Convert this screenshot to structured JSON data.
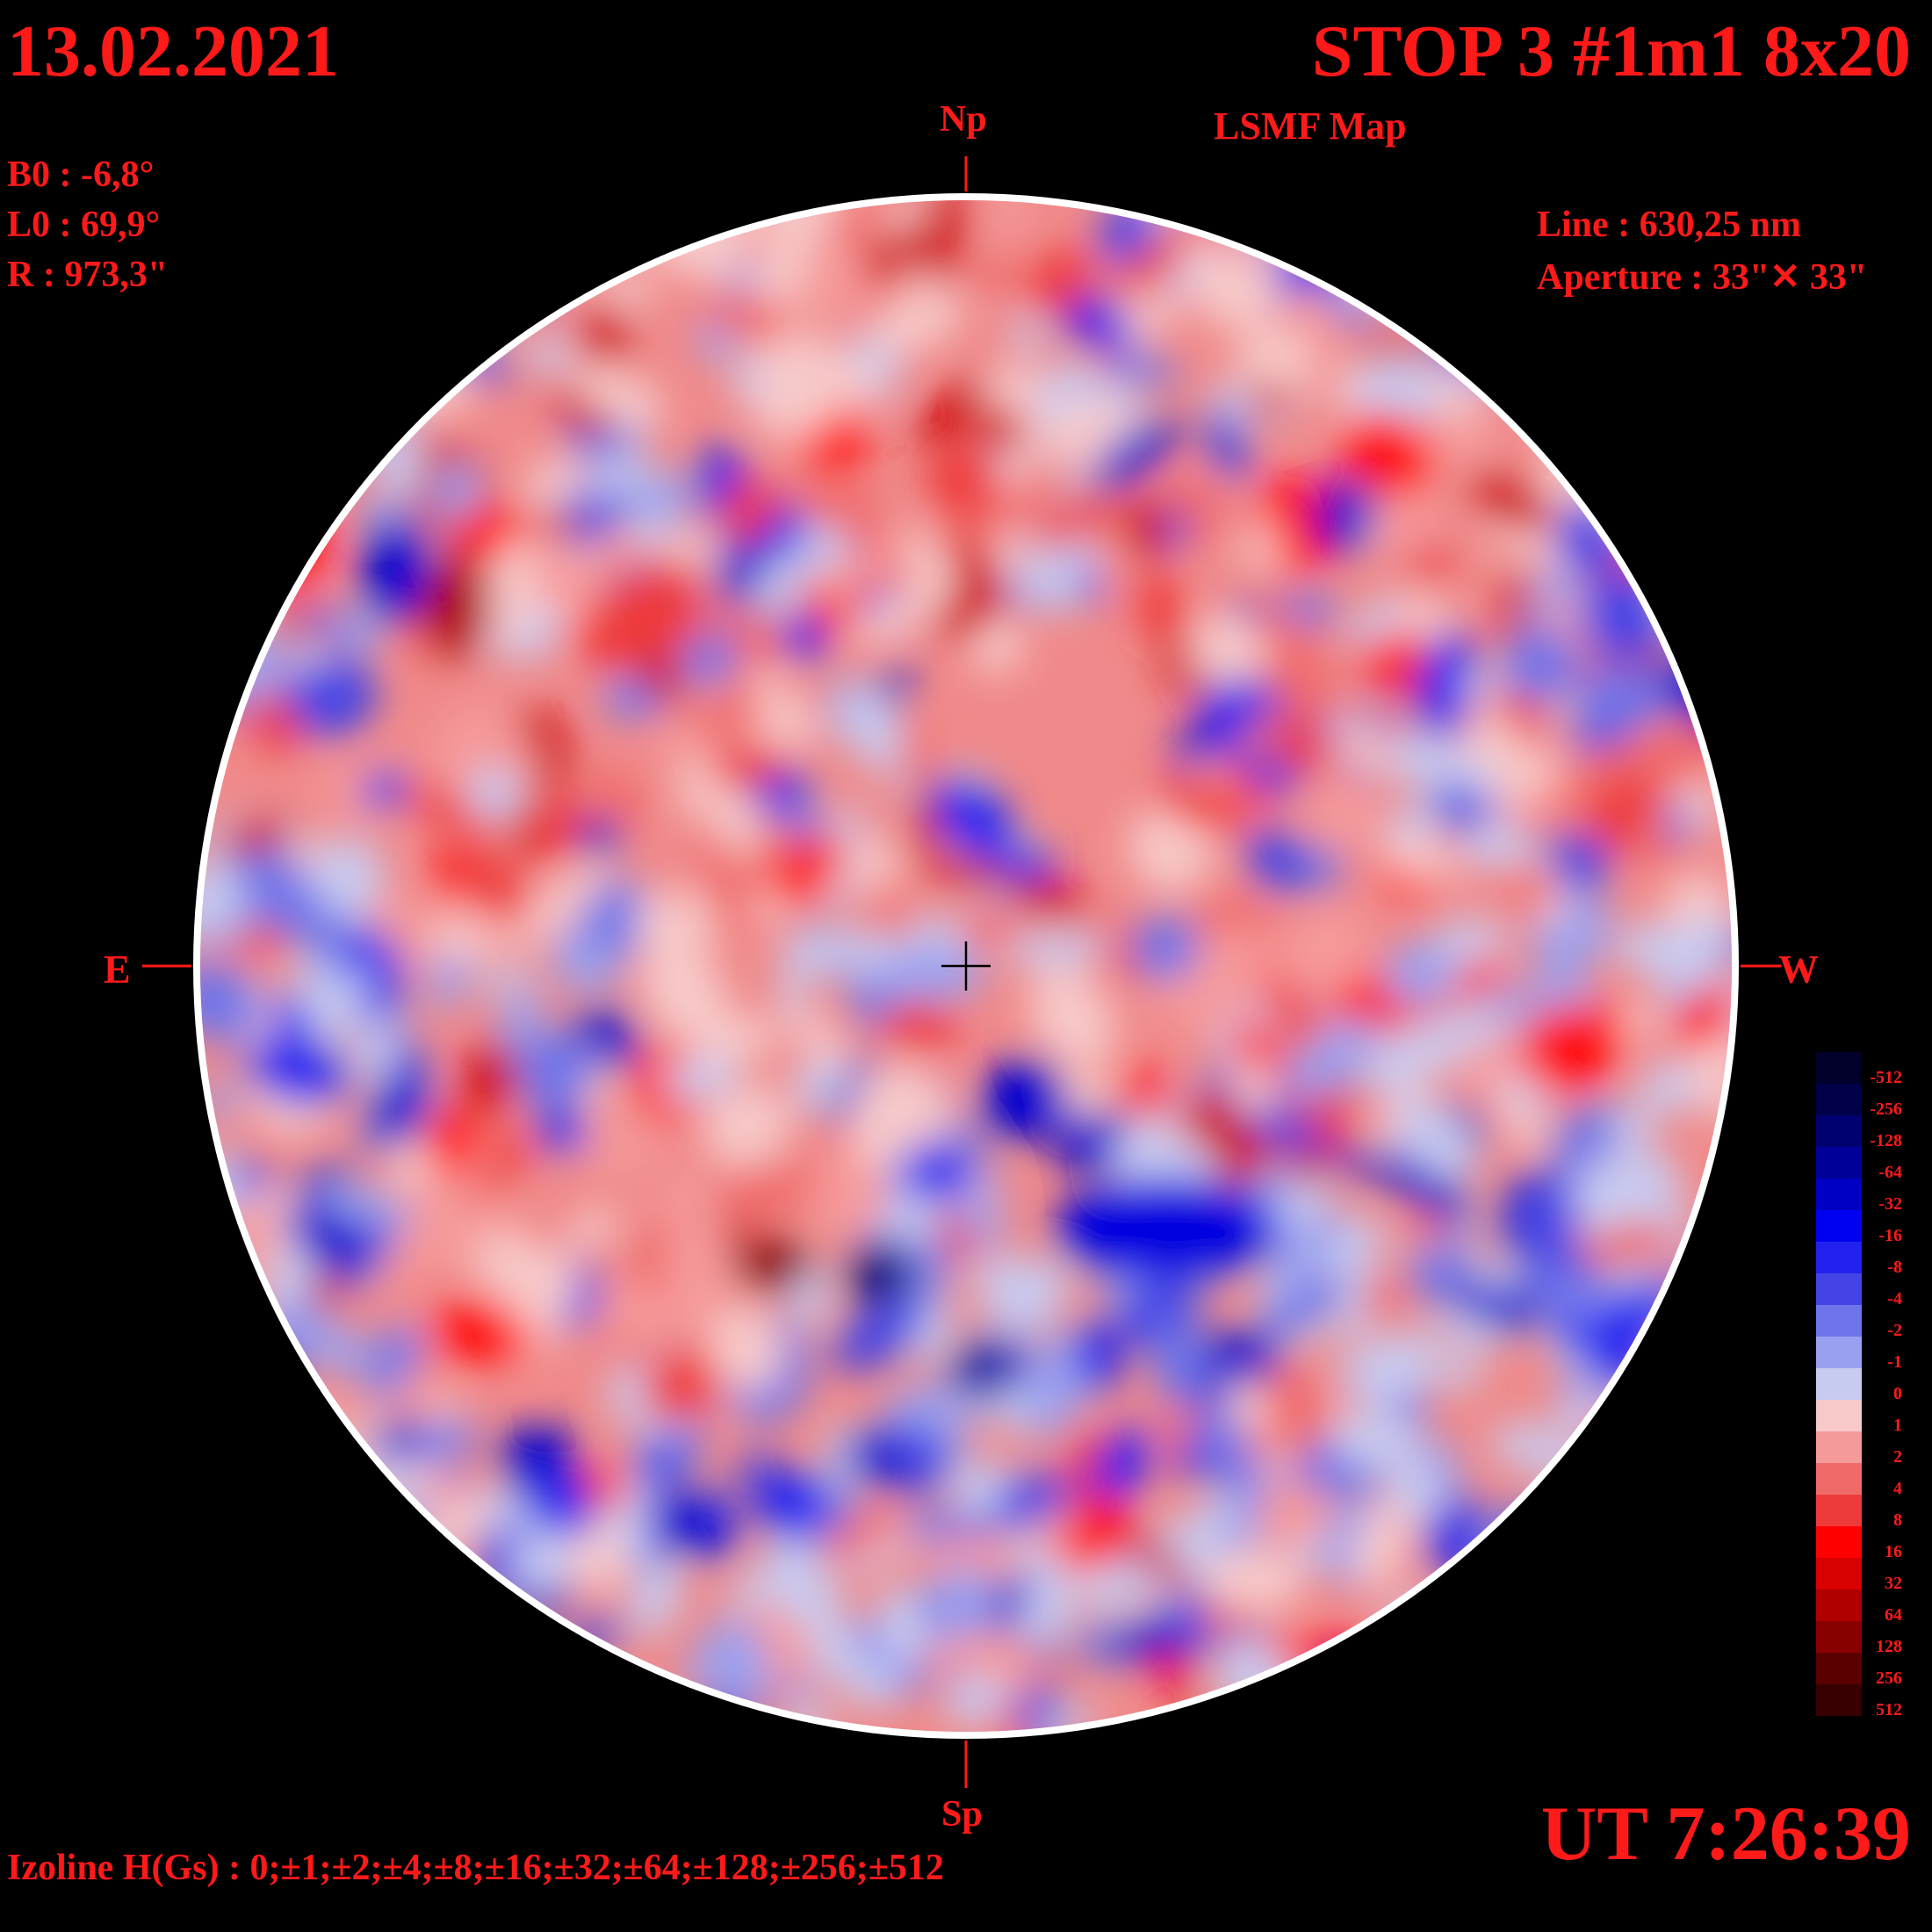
{
  "header": {
    "date": "13.02.2021",
    "title": "STOP 3 #1m1 8x20",
    "subtitle": "LSMF  Map"
  },
  "params": {
    "b0": "B0 : -6,8°",
    "l0": "L0 : 69,9°",
    "r": "R  : 973,3\"",
    "line": "Line :  630,25 nm",
    "aperture": "Aperture : 33\"✕ 33\""
  },
  "directions": {
    "north": "Np",
    "south": "Sp",
    "east": "E",
    "west": "W"
  },
  "footer": {
    "izoline": "Izoline H(Gs) : 0;±1;±2;±4;±8;±16;±32;±64;±128;±256;±512",
    "ut": "UT 7:26:39"
  },
  "colors": {
    "text": "#ff1a1a",
    "background": "#000000",
    "positive_strong": "#5a0000",
    "positive_weak": "#f7b8b8",
    "negative_strong": "#00004d",
    "negative_weak": "#c8cbf0"
  },
  "scale": {
    "labels": [
      "-512",
      "-256",
      "-128",
      "-64",
      "-32",
      "-16",
      "-8",
      "-4",
      "-2",
      "-1",
      "0",
      "1",
      "2",
      "4",
      "8",
      "16",
      "32",
      "64",
      "128",
      "256",
      "512"
    ],
    "colors": [
      "#00002a",
      "#000048",
      "#000070",
      "#000098",
      "#0000c4",
      "#0000f0",
      "#2222f0",
      "#4444e6",
      "#6e74ea",
      "#9aa0f0",
      "#c8cbf0",
      "#f7c9c9",
      "#f59a9a",
      "#f06a6a",
      "#ee3a3a",
      "#ff0000",
      "#d80000",
      "#b00000",
      "#880000",
      "#5a0000",
      "#380000"
    ]
  }
}
